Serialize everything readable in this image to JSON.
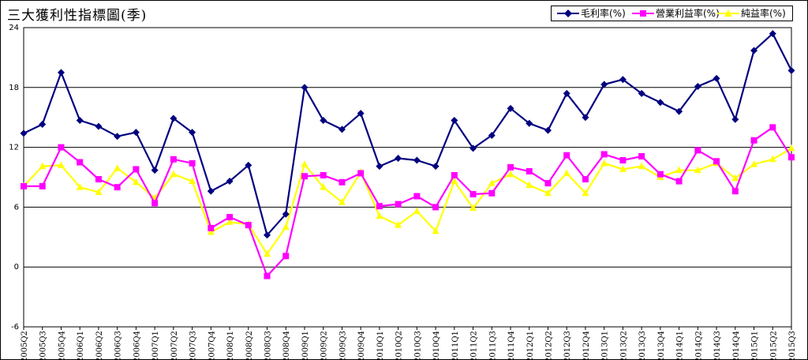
{
  "chart_data": {
    "type": "line",
    "title": "三大獲利性指標圖(季)",
    "categories": [
      "2005Q2",
      "2005Q3",
      "2005Q4",
      "2006Q1",
      "2006Q2",
      "2006Q3",
      "2006Q4",
      "2007Q1",
      "2007Q2",
      "2007Q3",
      "2007Q4",
      "2008Q1",
      "2008Q2",
      "2008Q3",
      "2008Q4",
      "2009Q1",
      "2009Q2",
      "2009Q3",
      "2009Q4",
      "2010Q1",
      "2010Q2",
      "2010Q3",
      "2010Q4",
      "2011Q1",
      "2011Q2",
      "2011Q3",
      "2011Q4",
      "2012Q1",
      "2012Q2",
      "2012Q3",
      "2012Q4",
      "2013Q1",
      "2013Q2",
      "2013Q3",
      "2013Q4",
      "2014Q1",
      "2014Q2",
      "2014Q3",
      "2014Q4",
      "2015Q1",
      "2015Q2",
      "2015Q3"
    ],
    "ylim": [
      -6,
      24
    ],
    "yticks": [
      "24",
      "18",
      "12",
      "6",
      "0",
      "-6"
    ],
    "grid": true,
    "legend_position": "top-right",
    "series": [
      {
        "name": "毛利率(%)",
        "color": "#000080",
        "marker": "diamond",
        "values": [
          13.4,
          14.3,
          19.5,
          14.7,
          14.1,
          13.1,
          13.5,
          9.7,
          14.9,
          13.5,
          7.6,
          8.6,
          10.2,
          3.2,
          5.3,
          18.0,
          14.7,
          13.8,
          15.4,
          10.1,
          10.9,
          10.7,
          10.1,
          14.7,
          11.9,
          13.2,
          15.9,
          14.4,
          13.7,
          17.4,
          15.0,
          18.3,
          18.8,
          17.4,
          16.5,
          15.6,
          18.1,
          18.9,
          14.8,
          21.7,
          23.4,
          19.7
        ]
      },
      {
        "name": "營業利益率(%)",
        "color": "#ff00ff",
        "marker": "square",
        "values": [
          8.1,
          8.1,
          12.0,
          10.5,
          8.8,
          8.0,
          9.8,
          6.4,
          10.8,
          10.4,
          3.9,
          5.0,
          4.2,
          -0.9,
          1.1,
          9.1,
          9.2,
          8.5,
          9.4,
          6.1,
          6.3,
          7.1,
          6.0,
          9.2,
          7.3,
          7.4,
          10.0,
          9.6,
          8.4,
          11.2,
          8.8,
          11.3,
          10.7,
          11.1,
          9.3,
          8.6,
          11.7,
          10.6,
          7.6,
          12.7,
          14.0,
          11.0
        ]
      },
      {
        "name": "純益率(%)",
        "color": "#ffff00",
        "marker": "triangle",
        "values": [
          8.1,
          10.1,
          10.2,
          8.0,
          7.5,
          9.9,
          8.5,
          6.9,
          9.3,
          8.6,
          3.5,
          4.5,
          4.3,
          1.3,
          4.0,
          10.3,
          8.0,
          6.5,
          9.5,
          5.1,
          4.2,
          5.6,
          3.6,
          8.6,
          5.9,
          8.4,
          9.3,
          8.2,
          7.4,
          9.4,
          7.4,
          10.4,
          9.8,
          10.1,
          9.0,
          9.7,
          9.7,
          10.4,
          8.9,
          10.3,
          10.8,
          11.9
        ]
      }
    ]
  }
}
